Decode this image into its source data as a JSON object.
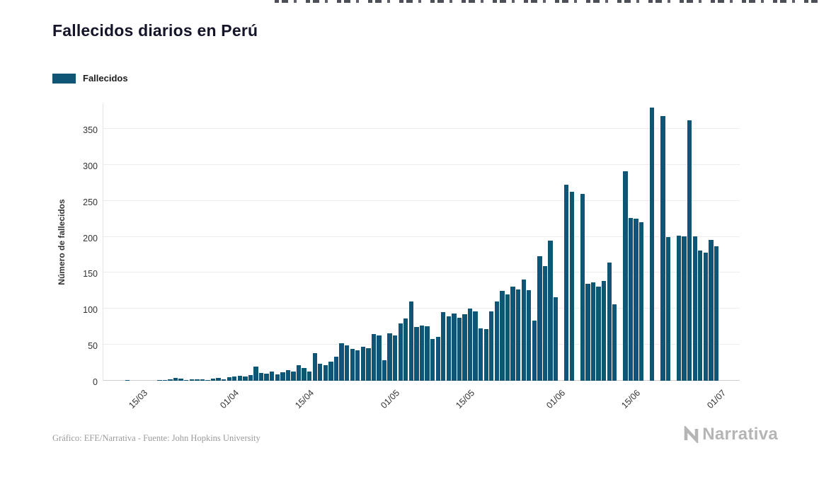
{
  "title": "Fallecidos diarios en Perú",
  "legend": {
    "label": "Fallecidos",
    "color": "#0f5575"
  },
  "footer": {
    "credit": "Gráfico: EFE/Narrativa - Fuente: John Hopkins University"
  },
  "brand": {
    "name": "Narrativa"
  },
  "chart_data": {
    "type": "bar",
    "title": "Fallecidos diarios en Perú",
    "xlabel": "",
    "ylabel": "Número de fallecidos",
    "ylim": [
      0,
      380
    ],
    "yticks": [
      0,
      50,
      100,
      150,
      200,
      250,
      300,
      350
    ],
    "xticks": [
      "15/03",
      "01/04",
      "15/04",
      "01/05",
      "15/05",
      "01/06",
      "15/06",
      "01/07"
    ],
    "grid": true,
    "legend_position": "top-left",
    "bar_color": "#0f5575",
    "series_name": "Fallecidos",
    "points": [
      [
        "08/03",
        0
      ],
      [
        "09/03",
        0
      ],
      [
        "10/03",
        0
      ],
      [
        "11/03",
        0
      ],
      [
        "12/03",
        1
      ],
      [
        "13/03",
        0
      ],
      [
        "14/03",
        0
      ],
      [
        "15/03",
        0
      ],
      [
        "16/03",
        0
      ],
      [
        "17/03",
        0
      ],
      [
        "18/03",
        1
      ],
      [
        "19/03",
        1
      ],
      [
        "20/03",
        2
      ],
      [
        "21/03",
        4
      ],
      [
        "22/03",
        3
      ],
      [
        "23/03",
        1
      ],
      [
        "24/03",
        2
      ],
      [
        "25/03",
        2
      ],
      [
        "26/03",
        2
      ],
      [
        "27/03",
        1
      ],
      [
        "28/03",
        3
      ],
      [
        "29/03",
        4
      ],
      [
        "30/03",
        2
      ],
      [
        "31/03",
        5
      ],
      [
        "01/04",
        6
      ],
      [
        "02/04",
        7
      ],
      [
        "03/04",
        6
      ],
      [
        "04/04",
        8
      ],
      [
        "05/04",
        20
      ],
      [
        "06/04",
        11
      ],
      [
        "07/04",
        10
      ],
      [
        "08/04",
        13
      ],
      [
        "09/04",
        9
      ],
      [
        "10/04",
        12
      ],
      [
        "11/04",
        15
      ],
      [
        "12/04",
        13
      ],
      [
        "13/04",
        22
      ],
      [
        "14/04",
        18
      ],
      [
        "15/04",
        13
      ],
      [
        "16/04",
        38
      ],
      [
        "17/04",
        24
      ],
      [
        "18/04",
        22
      ],
      [
        "19/04",
        27
      ],
      [
        "20/04",
        33
      ],
      [
        "21/04",
        52
      ],
      [
        "22/04",
        49
      ],
      [
        "23/04",
        44
      ],
      [
        "24/04",
        42
      ],
      [
        "25/04",
        47
      ],
      [
        "26/04",
        45
      ],
      [
        "27/04",
        65
      ],
      [
        "28/04",
        63
      ],
      [
        "29/04",
        29
      ],
      [
        "30/04",
        66
      ],
      [
        "01/05",
        63
      ],
      [
        "02/05",
        80
      ],
      [
        "03/05",
        87
      ],
      [
        "04/05",
        110
      ],
      [
        "05/05",
        75
      ],
      [
        "06/05",
        77
      ],
      [
        "07/05",
        76
      ],
      [
        "08/05",
        58
      ],
      [
        "09/05",
        61
      ],
      [
        "10/05",
        95
      ],
      [
        "11/05",
        89
      ],
      [
        "12/05",
        93
      ],
      [
        "13/05",
        88
      ],
      [
        "14/05",
        92
      ],
      [
        "15/05",
        100
      ],
      [
        "16/05",
        96
      ],
      [
        "17/05",
        73
      ],
      [
        "18/05",
        72
      ],
      [
        "19/05",
        96
      ],
      [
        "20/05",
        110
      ],
      [
        "21/05",
        125
      ],
      [
        "22/05",
        120
      ],
      [
        "23/05",
        131
      ],
      [
        "24/05",
        127
      ],
      [
        "25/05",
        141
      ],
      [
        "26/05",
        126
      ],
      [
        "27/05",
        84
      ],
      [
        "28/05",
        173
      ],
      [
        "29/05",
        159
      ],
      [
        "30/05",
        195
      ],
      [
        "31/05",
        116
      ],
      [
        "01/06",
        0
      ],
      [
        "02/06",
        272
      ],
      [
        "03/06",
        263
      ],
      [
        "04/06",
        0
      ],
      [
        "05/06",
        260
      ],
      [
        "06/06",
        135
      ],
      [
        "07/06",
        137
      ],
      [
        "08/06",
        131
      ],
      [
        "09/06",
        139
      ],
      [
        "10/06",
        164
      ],
      [
        "11/06",
        106
      ],
      [
        "12/06",
        0
      ],
      [
        "13/06",
        291
      ],
      [
        "14/06",
        226
      ],
      [
        "15/06",
        225
      ],
      [
        "16/06",
        220
      ],
      [
        "17/06",
        0
      ],
      [
        "18/06",
        380
      ],
      [
        "19/06",
        0
      ],
      [
        "20/06",
        368
      ],
      [
        "21/06",
        200
      ],
      [
        "22/06",
        0
      ],
      [
        "23/06",
        202
      ],
      [
        "24/06",
        201
      ],
      [
        "25/06",
        362
      ],
      [
        "26/06",
        201
      ],
      [
        "27/06",
        181
      ],
      [
        "28/06",
        178
      ],
      [
        "29/06",
        196
      ],
      [
        "30/06",
        187
      ]
    ]
  }
}
